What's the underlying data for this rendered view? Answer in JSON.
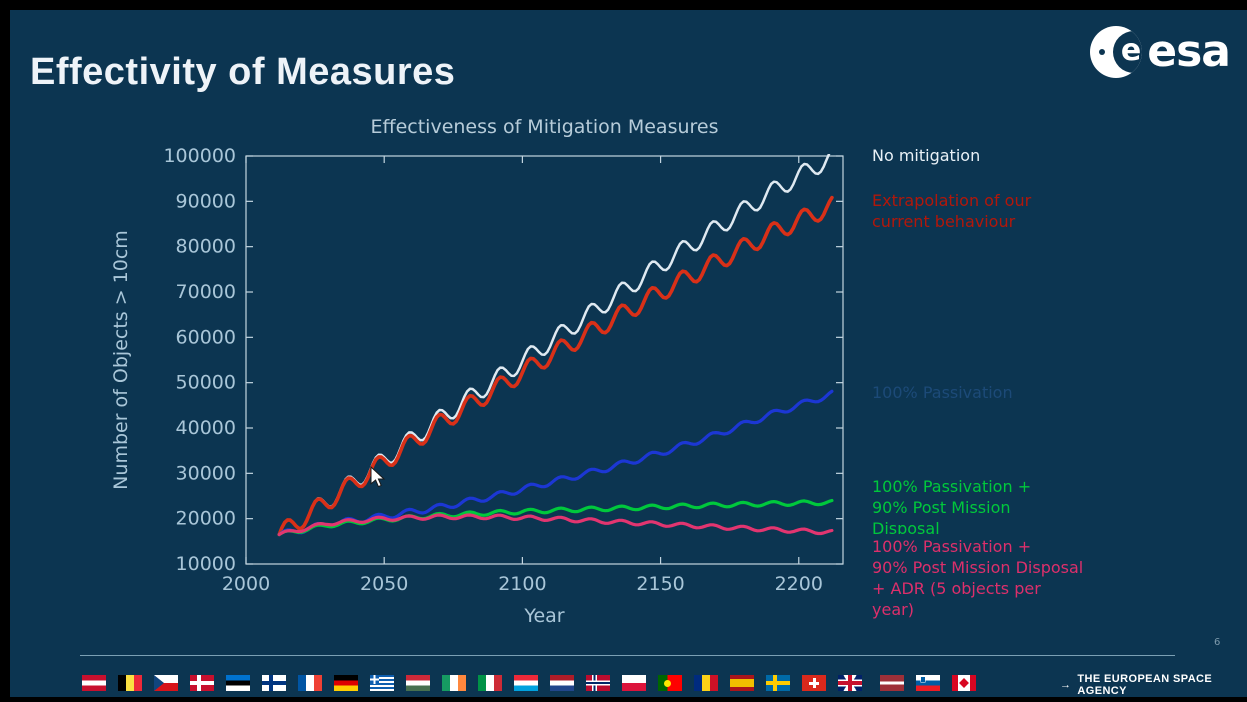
{
  "slide": {
    "title": "Effectivity of Measures",
    "page_number": "6"
  },
  "logo": {
    "text": "esa"
  },
  "colors": {
    "background": "#0c3551",
    "frame_black": "#000000",
    "axis": "#c3d5e0",
    "axis_text": "#a9c6d8",
    "chart_title_text": "#b7ccd9"
  },
  "chart_data": {
    "type": "line",
    "title": "Effectiveness of Mitigation Measures",
    "xlabel": "Year",
    "ylabel": "Number of Objects > 10cm",
    "xlim": [
      2000,
      2216
    ],
    "ylim": [
      10000,
      100000
    ],
    "xticks": [
      2000,
      2050,
      2100,
      2150,
      2200
    ],
    "yticks": [
      10000,
      20000,
      30000,
      40000,
      50000,
      60000,
      70000,
      80000,
      90000,
      100000
    ],
    "grid": false,
    "legend_position": "right",
    "oscillation_period_years": 11,
    "series": [
      {
        "name": "No mitigation",
        "color": "#dfe9f1",
        "width": 2.5,
        "amplitude": 2000,
        "points": [
          [
            2012,
            16500
          ],
          [
            2030,
            24200
          ],
          [
            2050,
            33000
          ],
          [
            2070,
            42000
          ],
          [
            2090,
            50500
          ],
          [
            2110,
            59000
          ],
          [
            2130,
            67500
          ],
          [
            2150,
            76000
          ],
          [
            2170,
            84000
          ],
          [
            2190,
            92000
          ],
          [
            2212,
            99800
          ]
        ]
      },
      {
        "name": "Extrapolation of our current behaviour",
        "color": "#d93018",
        "width": 3.6,
        "amplitude": 2000,
        "points": [
          [
            2012,
            16500
          ],
          [
            2030,
            24000
          ],
          [
            2050,
            32500
          ],
          [
            2070,
            41000
          ],
          [
            2090,
            48500
          ],
          [
            2110,
            56000
          ],
          [
            2130,
            63000
          ],
          [
            2150,
            70000
          ],
          [
            2170,
            76500
          ],
          [
            2190,
            83000
          ],
          [
            2212,
            89000
          ]
        ]
      },
      {
        "name": "100% Passivation",
        "color": "#1c37d4",
        "width": 3.2,
        "amplitude": 650,
        "points": [
          [
            2012,
            16500
          ],
          [
            2030,
            18800
          ],
          [
            2050,
            20500
          ],
          [
            2070,
            22500
          ],
          [
            2090,
            25000
          ],
          [
            2110,
            28000
          ],
          [
            2130,
            31000
          ],
          [
            2150,
            34500
          ],
          [
            2170,
            38500
          ],
          [
            2190,
            43000
          ],
          [
            2212,
            47500
          ]
        ]
      },
      {
        "name": "100% Passivation + 90% Post Mission Disposal",
        "color": "#00c83c",
        "width": 3.2,
        "amplitude": 450,
        "points": [
          [
            2012,
            16500
          ],
          [
            2030,
            18600
          ],
          [
            2050,
            19800
          ],
          [
            2070,
            20700
          ],
          [
            2090,
            21300
          ],
          [
            2110,
            21800
          ],
          [
            2130,
            22200
          ],
          [
            2150,
            22600
          ],
          [
            2170,
            23000
          ],
          [
            2190,
            23300
          ],
          [
            2212,
            23600
          ]
        ]
      },
      {
        "name": "100% Passivation + 90% Post Mission Disposal + ADR (5 objects per year)",
        "color": "#e23570",
        "width": 3.2,
        "amplitude": 420,
        "points": [
          [
            2012,
            16500
          ],
          [
            2030,
            19000
          ],
          [
            2050,
            20000
          ],
          [
            2070,
            20400
          ],
          [
            2090,
            20400
          ],
          [
            2110,
            20000
          ],
          [
            2130,
            19400
          ],
          [
            2150,
            18800
          ],
          [
            2170,
            18200
          ],
          [
            2190,
            17600
          ],
          [
            2212,
            17000
          ]
        ]
      }
    ]
  },
  "legend": {
    "no_mitigation": {
      "text": "No mitigation",
      "color": "#e9f1f7"
    },
    "extrapolation": {
      "text": "Extrapolation of our\ncurrent behaviour",
      "color": "#b2170a"
    },
    "passivation": {
      "text": "100% Passivation",
      "color": "#1c4a78"
    },
    "passivation_pmd": {
      "text": "100% Passivation +\n90% Post Mission\nDisposal",
      "color": "#00c83c"
    },
    "passivation_pmd_adr": {
      "text": "100% Passivation +\n90% Post Mission Disposal\n+ ADR (5 objects per\nyear)",
      "color": "#dd2f6b"
    }
  },
  "footer": {
    "arrow": "→",
    "agency_text": "THE EUROPEAN SPACE AGENCY",
    "flags": [
      "austria",
      "belgium",
      "czech-republic",
      "denmark",
      "estonia",
      "finland",
      "france",
      "germany",
      "greece",
      "hungary",
      "ireland",
      "italy",
      "luxembourg",
      "netherlands",
      "norway",
      "poland",
      "portugal",
      "romania",
      "spain",
      "sweden",
      "switzerland",
      "united-kingdom",
      "latvia",
      "slovenia",
      "canada"
    ]
  }
}
